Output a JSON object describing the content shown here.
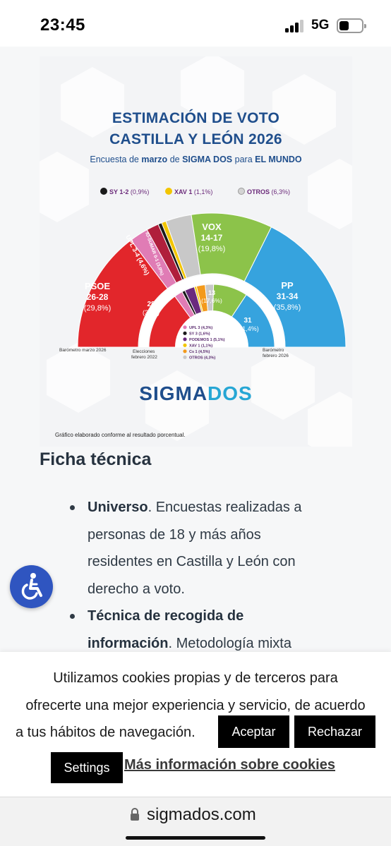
{
  "status_bar": {
    "time": "23:45",
    "network": "5G"
  },
  "infographic": {
    "title_line1": "ESTIMACIÓN DE VOTO",
    "title_line2": "CASTILLA Y LEÓN 2026",
    "subtitle_pre": "Encuesta de",
    "subtitle_month": "marzo",
    "subtitle_mid": "de",
    "subtitle_pollster": "SIGMA DOS",
    "subtitle_para": "para",
    "subtitle_media": "EL MUNDO",
    "legend": [
      {
        "label": "SY 1-2",
        "pct": "(0,9%)",
        "color": "#1a1a1a"
      },
      {
        "label": "XAV 1",
        "pct": "(1,1%)",
        "color": "#f2c500"
      },
      {
        "label": "OTROS",
        "pct": "(6,3%)",
        "color": "#c8c8c8"
      }
    ],
    "outer_labels": {
      "psoe_name": "PSOE",
      "psoe_seats": "26-28",
      "psoe_pct": "(29,8%)",
      "upl": "UPL 3-4 (4,6%)",
      "iu": "IU-SUMAR 0-1 (3,0%)",
      "vox_name": "VOX",
      "vox_seats": "14-17",
      "vox_pct": "(19,8%)",
      "pp_name": "PP",
      "pp_seats": "31-34",
      "pp_pct": "(35,8%)"
    },
    "inner_labels": {
      "psoe_seats": "28",
      "psoe_pct": "(30%)",
      "vox_seats": "13",
      "vox_pct": "(17,6%)",
      "pp_seats": "31",
      "pp_pct": "(31,4%)"
    },
    "inner_legend": [
      {
        "label": "UPL 3",
        "pct": "(4,3%)",
        "color": "#e07cb5"
      },
      {
        "label": "SY 3",
        "pct": "(1,6%)",
        "color": "#1a1a1a"
      },
      {
        "label": "PODEMOS 1",
        "pct": "(5,1%)",
        "color": "#6a2a7e"
      },
      {
        "label": "XAV 1",
        "pct": "(1,1%)",
        "color": "#f2c500"
      },
      {
        "label": "Cs 1",
        "pct": "(4,5%)",
        "color": "#f39a1c"
      },
      {
        "label": "OTROS",
        "pct": "(4,3%)",
        "color": "#c8c8c8"
      }
    ],
    "axis_labels": {
      "left": "Barómetro marzo 2026",
      "mid_1": "Elecciones",
      "mid_2": "febrero 2022",
      "right_1": "Barómetro",
      "right_2": "febrero 2026"
    },
    "brand_a": "SIGMA",
    "brand_b": "DOS",
    "note": "Gráfico elaborado conforme al resultado porcentual.",
    "colors": {
      "psoe": "#e2262b",
      "upl": "#e07cb5",
      "iu": "#b01f3c",
      "sy": "#1a1a1a",
      "podemos": "#6a2a7e",
      "xav": "#f2c500",
      "cs": "#f39a1c",
      "otros": "#c8c8c8",
      "vox": "#8cc34a",
      "pp": "#36a3de"
    }
  },
  "chart_data": [
    {
      "type": "pie",
      "title": "Barómetro marzo 2026",
      "categories": [
        "PSOE",
        "UPL",
        "IU-SUMAR",
        "SY",
        "XAV",
        "OTROS",
        "VOX",
        "PP"
      ],
      "values": [
        29.8,
        4.6,
        3.0,
        0.9,
        1.1,
        6.3,
        19.8,
        35.8
      ],
      "seats": [
        "26-28",
        "3-4",
        "0-1",
        "1-2",
        "1",
        "",
        "14-17",
        "31-34"
      ]
    },
    {
      "type": "pie",
      "title": "Elecciones febrero 2022",
      "categories": [
        "PSOE",
        "UPL",
        "SY",
        "PODEMOS",
        "XAV",
        "Cs",
        "OTROS",
        "VOX",
        "PP"
      ],
      "values": [
        30,
        4.3,
        1.6,
        5.1,
        1.1,
        4.5,
        4.3,
        17.6,
        31.4
      ],
      "seats": [
        "28",
        "3",
        "3",
        "1",
        "1",
        "1",
        "",
        "13",
        "31"
      ]
    }
  ],
  "section": {
    "title": "Ficha técnica",
    "bullets": [
      {
        "bold": "Universo",
        "text": ". Encuestas realizadas a"
      },
      {
        "bold": "",
        "text": "personas de 18 y más años"
      },
      {
        "bold": "",
        "text": "residentes en Castilla y León con"
      },
      {
        "bold": "",
        "text": "derecho a voto."
      },
      {
        "bold": "Técnica de recogida de",
        "text": ""
      },
      {
        "bold": "información",
        "text": ". Metodología mixta"
      }
    ]
  },
  "cookie": {
    "line1": "Utilizamos cookies propias y de terceros para",
    "line2": "ofrecerte una mejor experiencia y servicio, de acuerdo",
    "line3": "a tus hábitos de navegación.",
    "accept": "Aceptar",
    "reject": "Rechazar",
    "settings": "Settings",
    "more_info": "Más información sobre cookies"
  },
  "browser": {
    "url": "sigmados.com"
  }
}
